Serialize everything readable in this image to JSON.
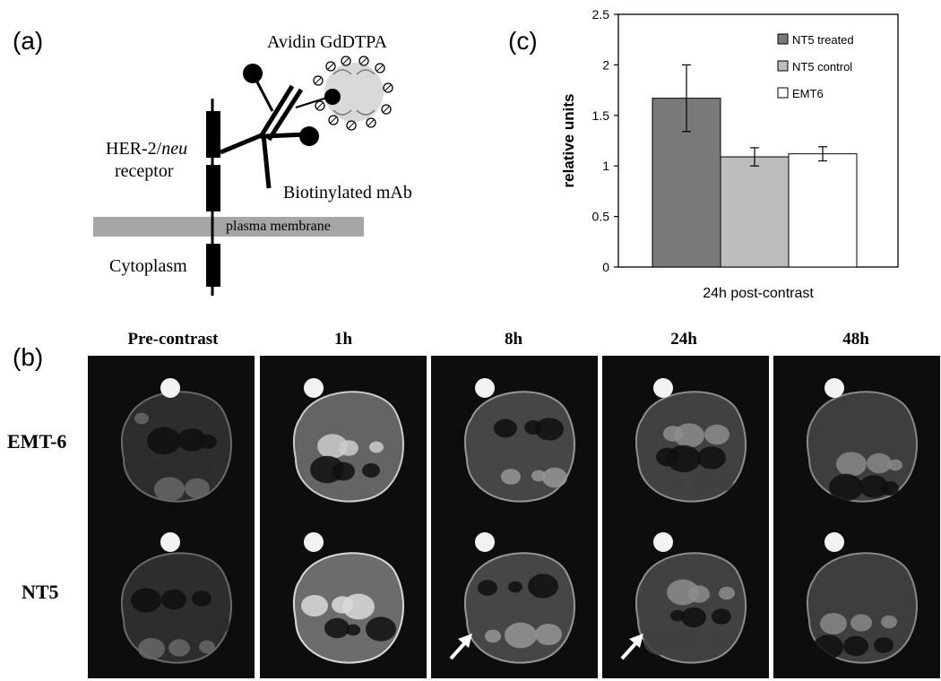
{
  "panel_a": {
    "letter": "(a)",
    "avidin_label": "Avidin GdDTPA",
    "receptor_label_1": "HER-2/",
    "receptor_label_italic": "neu",
    "receptor_label_2": "receptor",
    "antibody_label": "Biotinylated mAb",
    "membrane_label": "plasma membrane",
    "cytoplasm_label": "Cytoplasm"
  },
  "panel_b": {
    "letter": "(b)",
    "columns": [
      "Pre-contrast",
      "1h",
      "8h",
      "24h",
      "48h"
    ],
    "rows": [
      "EMT-6",
      "NT5"
    ],
    "arrow_cells": [
      "NT5-8h",
      "NT5-24h"
    ]
  },
  "panel_c": {
    "letter": "(c)"
  },
  "chart_data": {
    "type": "bar",
    "categories": [
      "NT5 treated",
      "NT5 control",
      "EMT6"
    ],
    "values": [
      1.67,
      1.09,
      1.12
    ],
    "errors": [
      0.33,
      0.09,
      0.07
    ],
    "colors": [
      "#7a7a7a",
      "#bdbdbd",
      "#ffffff"
    ],
    "xlabel": "24h post-contrast",
    "ylabel": "relative units",
    "ylim": [
      0,
      2.5
    ],
    "yticks": [
      "0",
      "0.5",
      "1",
      "1.5",
      "2",
      "2.5"
    ],
    "legend": [
      "NT5 treated",
      "NT5 control",
      "EMT6"
    ],
    "legend_position": "top-right",
    "grid": false
  }
}
